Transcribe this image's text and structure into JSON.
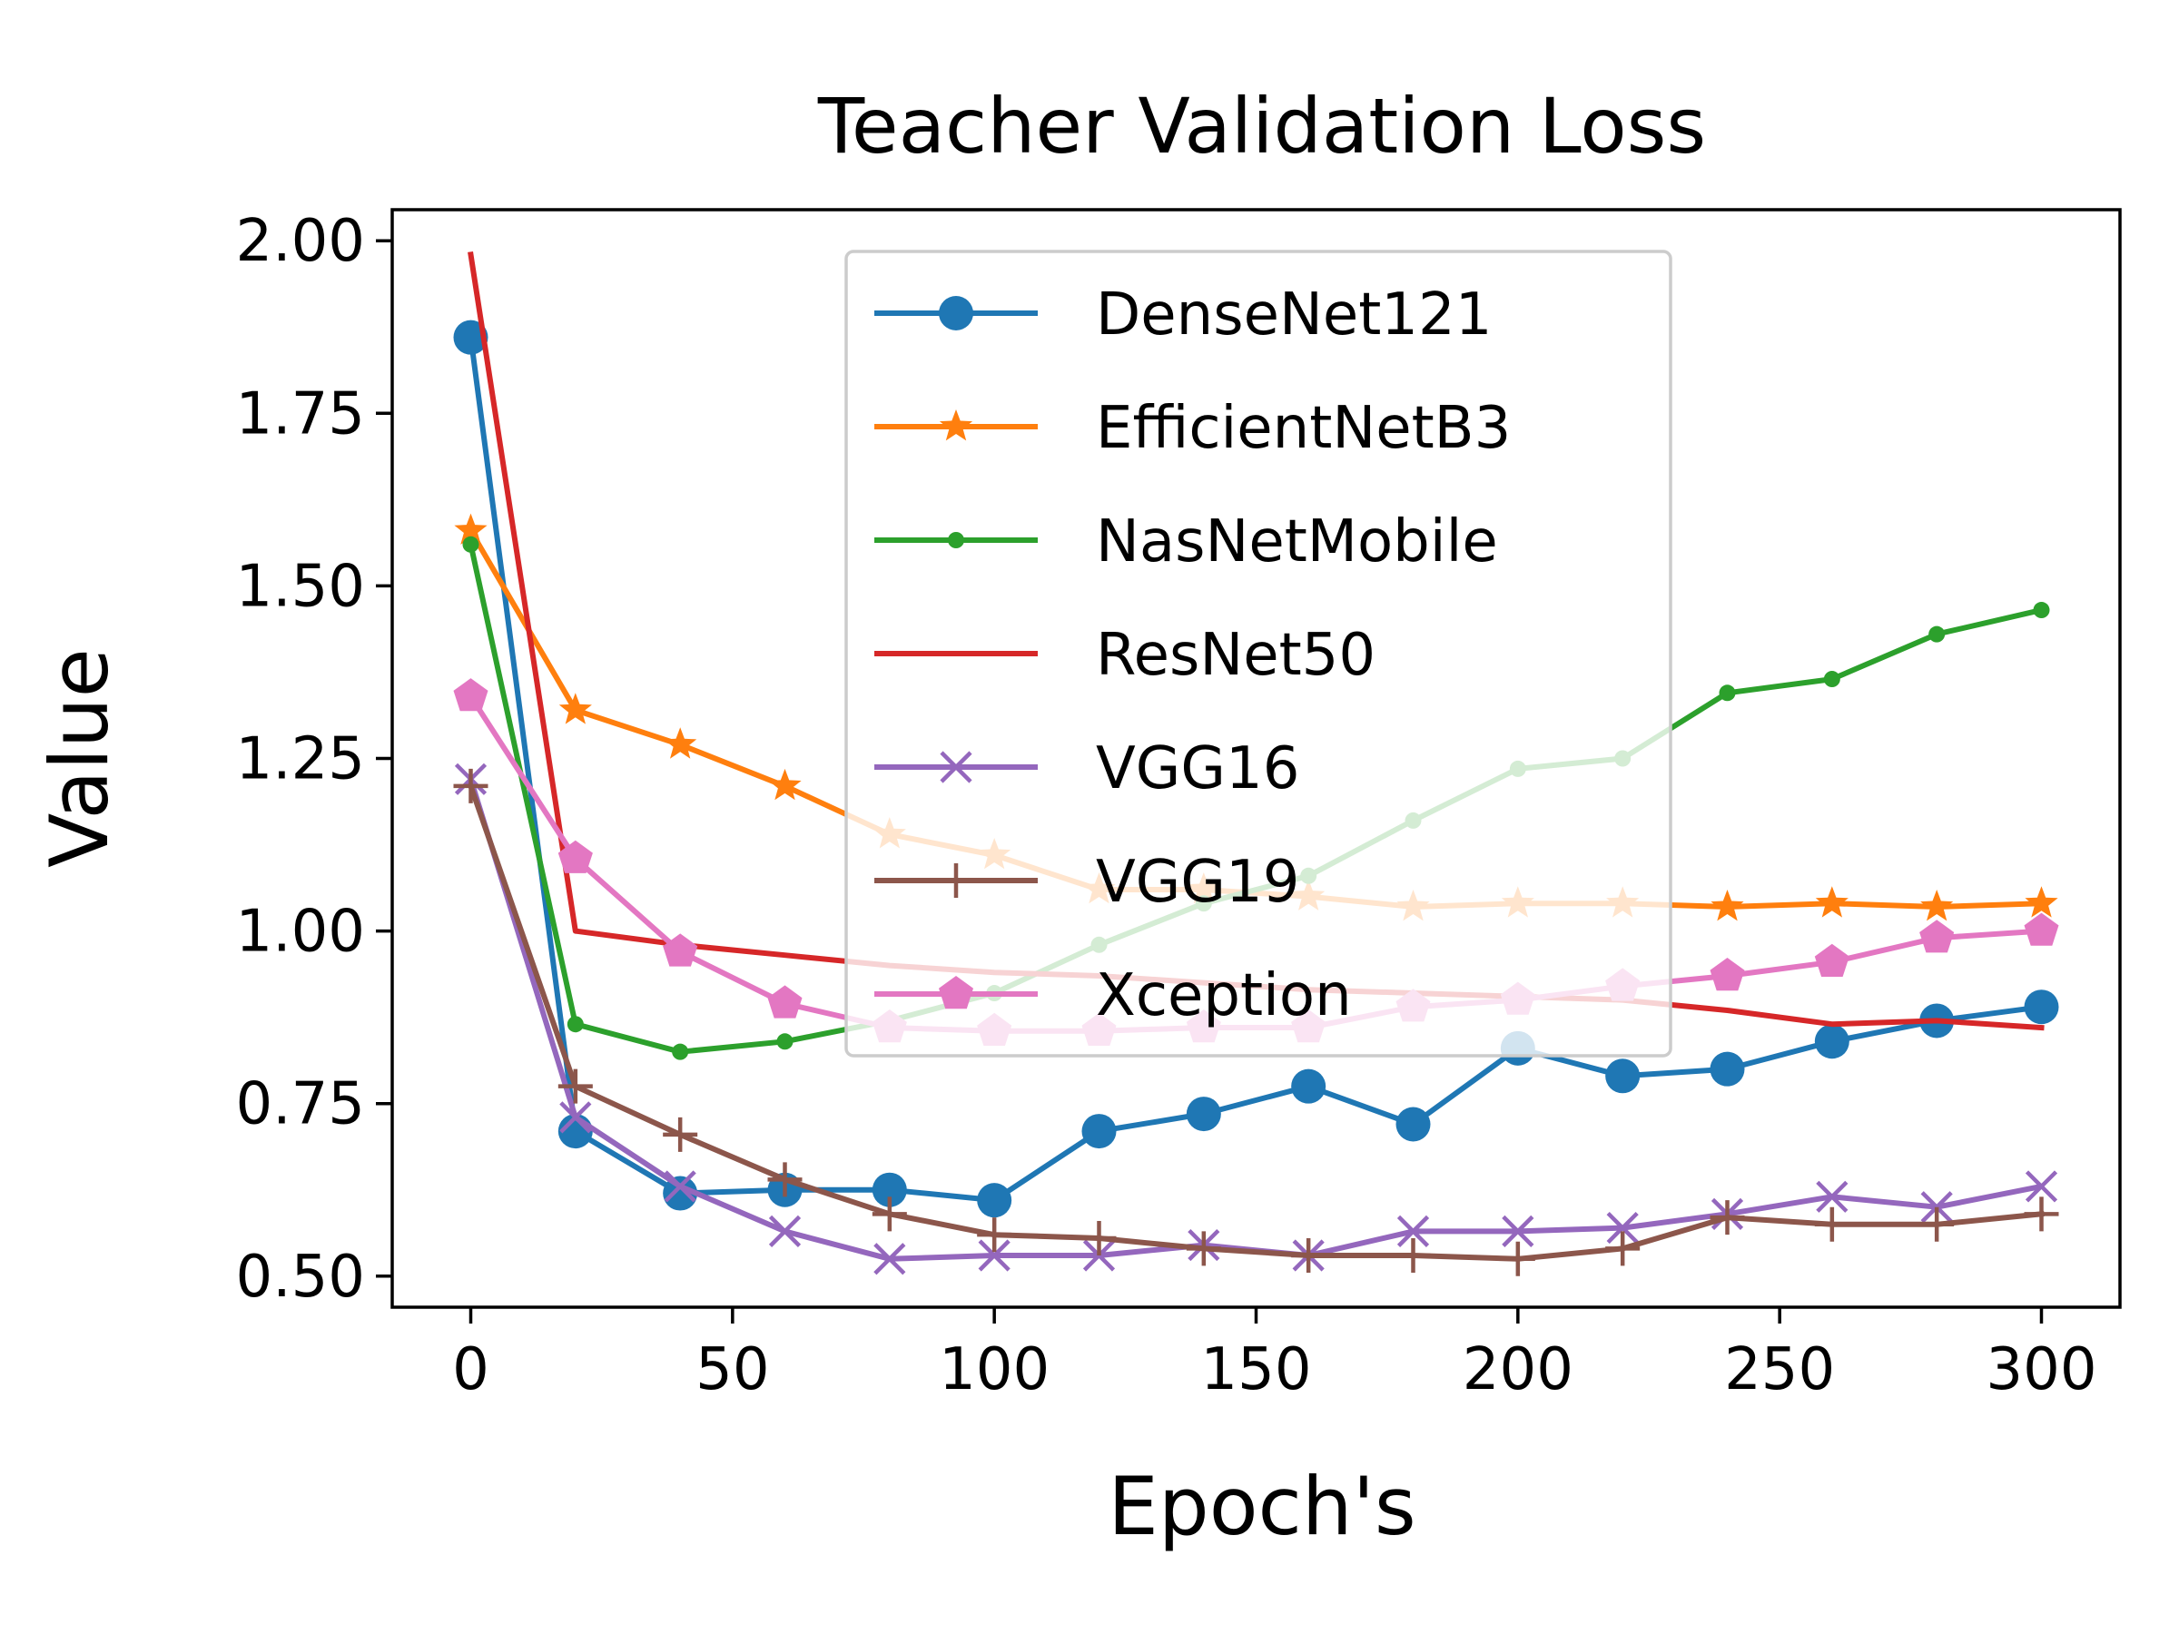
{
  "chart_data": {
    "type": "line",
    "title": "Teacher Validation Loss",
    "xlabel": "Epoch's",
    "ylabel": "Value",
    "xlim": [
      -15,
      315
    ],
    "ylim": [
      0.455,
      2.045
    ],
    "xticks": [
      0,
      50,
      100,
      150,
      200,
      250,
      300
    ],
    "yticks": [
      0.5,
      0.75,
      1.0,
      1.25,
      1.5,
      1.75,
      2.0
    ],
    "xtick_labels": [
      "0",
      "50",
      "100",
      "150",
      "200",
      "250",
      "300"
    ],
    "ytick_labels": [
      "0.50",
      "0.75",
      "1.00",
      "1.25",
      "1.50",
      "1.75",
      "2.00"
    ],
    "grid": false,
    "legend_position": "upper center",
    "x": [
      0,
      20,
      40,
      60,
      80,
      100,
      120,
      140,
      160,
      180,
      200,
      220,
      240,
      260,
      280,
      300
    ],
    "series": [
      {
        "name": "DenseNet121",
        "color": "#1f77b4",
        "marker": "circle",
        "values": [
          1.86,
          0.71,
          0.62,
          0.625,
          0.625,
          0.61,
          0.71,
          0.735,
          0.775,
          0.72,
          0.83,
          0.79,
          0.8,
          0.84,
          0.87,
          0.89
        ]
      },
      {
        "name": "EfficientNetB3",
        "color": "#ff7f0e",
        "marker": "star",
        "values": [
          1.58,
          1.32,
          1.27,
          1.21,
          1.14,
          1.11,
          1.06,
          1.06,
          1.05,
          1.035,
          1.04,
          1.04,
          1.035,
          1.04,
          1.035,
          1.04
        ]
      },
      {
        "name": "NasNetMobile",
        "color": "#2ca02c",
        "marker": "point",
        "values": [
          1.56,
          0.865,
          0.825,
          0.84,
          0.87,
          0.91,
          0.98,
          1.04,
          1.08,
          1.16,
          1.235,
          1.25,
          1.345,
          1.365,
          1.43,
          1.465
        ]
      },
      {
        "name": "ResNet50",
        "color": "#d62728",
        "marker": "none",
        "values": [
          1.98,
          1.0,
          0.98,
          0.965,
          0.95,
          0.94,
          0.935,
          0.925,
          0.915,
          0.91,
          0.905,
          0.9,
          0.885,
          0.865,
          0.87,
          0.86
        ]
      },
      {
        "name": "VGG16",
        "color": "#9467bd",
        "marker": "x",
        "values": [
          1.22,
          0.73,
          0.63,
          0.565,
          0.525,
          0.53,
          0.53,
          0.545,
          0.53,
          0.565,
          0.565,
          0.57,
          0.59,
          0.615,
          0.6,
          0.63
        ]
      },
      {
        "name": "VGG19",
        "color": "#8c564b",
        "marker": "plus",
        "values": [
          1.21,
          0.775,
          0.705,
          0.64,
          0.59,
          0.56,
          0.555,
          0.54,
          0.53,
          0.53,
          0.525,
          0.54,
          0.585,
          0.575,
          0.575,
          0.59
        ]
      },
      {
        "name": "Xception",
        "color": "#e377c2",
        "marker": "pentagon",
        "values": [
          1.34,
          1.105,
          0.97,
          0.895,
          0.86,
          0.855,
          0.855,
          0.86,
          0.86,
          0.89,
          0.9,
          0.92,
          0.935,
          0.955,
          0.99,
          1.0
        ]
      }
    ]
  }
}
